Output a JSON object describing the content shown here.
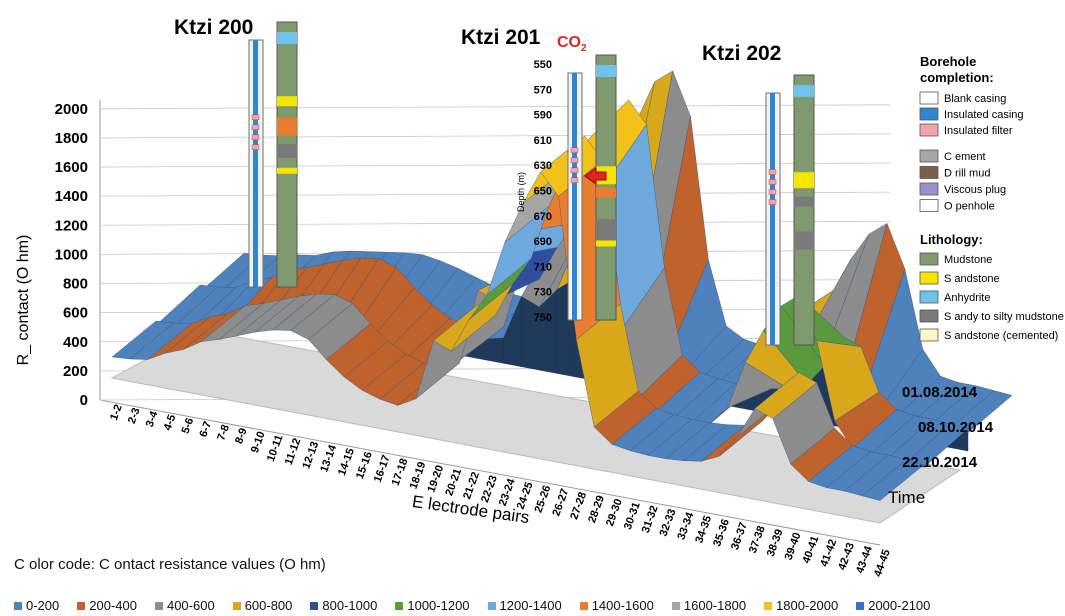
{
  "chart_data": {
    "type": "surface-3d",
    "ylabel": "R_ contact (O hm)",
    "xlabel": "E lectrode pairs",
    "zlabel": "Time",
    "yticks": [
      "0",
      "200",
      "400",
      "600",
      "800",
      "1000",
      "1200",
      "1400",
      "1600",
      "1800",
      "2000"
    ],
    "ylim": [
      0,
      2100
    ],
    "categories": [
      "1-2",
      "2-3",
      "3-4",
      "4-5",
      "5-6",
      "6-7",
      "7-8",
      "8-9",
      "9-10",
      "10-11",
      "11-12",
      "12-13",
      "13-14",
      "14-15",
      "15-16",
      "16-17",
      "17-18",
      "18-19",
      "19-20",
      "20-21",
      "21-22",
      "22-23",
      "23-24",
      "24-25",
      "25-26",
      "26-27",
      "27-28",
      "28-29",
      "29-30",
      "30-31",
      "31-32",
      "32-33",
      "33-34",
      "34-35",
      "35-36",
      "36-37",
      "37-38",
      "38-39",
      "39-40",
      "40-41",
      "41-42",
      "42-43",
      "43-44",
      "44-45"
    ],
    "time_labels": [
      "01.08.2014",
      "08.10.2014",
      "22.10.2014"
    ],
    "series": [
      {
        "name": "01.08.2014",
        "values": [
          150,
          160,
          180,
          250,
          300,
          380,
          420,
          470,
          520,
          560,
          580,
          540,
          420,
          320,
          250,
          210,
          190,
          260,
          700,
          650,
          900,
          1100,
          1500,
          1800,
          2050,
          1900,
          900,
          300,
          200,
          180,
          170,
          170,
          180,
          200,
          260,
          420,
          650,
          600,
          300,
          200,
          180,
          180,
          170,
          160
        ]
      },
      {
        "name": "08.10.2014",
        "values": [
          120,
          130,
          150,
          180,
          200,
          250,
          280,
          300,
          320,
          340,
          350,
          330,
          300,
          260,
          220,
          190,
          180,
          280,
          800,
          760,
          1100,
          1300,
          1600,
          1900,
          2000,
          1700,
          700,
          250,
          180,
          160,
          150,
          160,
          300,
          650,
          900,
          1100,
          1200,
          900,
          350,
          180,
          160,
          160,
          150,
          140
        ]
      },
      {
        "name": "22.10.2014",
        "values": [
          100,
          110,
          120,
          130,
          140,
          150,
          150,
          160,
          160,
          170,
          170,
          170,
          160,
          150,
          150,
          150,
          150,
          180,
          500,
          450,
          600,
          700,
          800,
          700,
          500,
          300,
          200,
          160,
          150,
          150,
          150,
          160,
          400,
          700,
          600,
          500,
          300,
          200,
          160,
          150,
          150,
          150,
          140,
          130
        ]
      }
    ],
    "color_code_title": "C olor code: C ontact resistance values (O hm)",
    "color_bands": [
      {
        "label": "0-200",
        "color": "#4f81bd"
      },
      {
        "label": "200-400",
        "color": "#c0622b"
      },
      {
        "label": "400-600",
        "color": "#8c8c8c"
      },
      {
        "label": "600-800",
        "color": "#d9a81a"
      },
      {
        "label": "800-1000",
        "color": "#2f4f9e"
      },
      {
        "label": "1000-1200",
        "color": "#5b9a3c"
      },
      {
        "label": "1200-1400",
        "color": "#6fa8dc"
      },
      {
        "label": "1400-1600",
        "color": "#e87d2f"
      },
      {
        "label": "1600-1800",
        "color": "#a6a6a6"
      },
      {
        "label": "1800-2000",
        "color": "#f2c21b"
      },
      {
        "label": "2000-2100",
        "color": "#3f6fc4"
      }
    ]
  },
  "wells": [
    {
      "name": "Ktzi 200"
    },
    {
      "name": "Ktzi 201",
      "marker": "CO",
      "marker_sub": "2"
    },
    {
      "name": "Ktzi 202"
    }
  ],
  "depth_axis": {
    "label": "Depth (m)",
    "ticks": [
      "550",
      "570",
      "590",
      "610",
      "630",
      "650",
      "670",
      "690",
      "710",
      "730",
      "750"
    ]
  },
  "completion_legend": {
    "title": "Borehole\ncompletion:",
    "title_line1": "Borehole",
    "title_line2": "completion:",
    "items": [
      {
        "label": "Blank casing",
        "color": "#ffffff"
      },
      {
        "label": "Insulated casing",
        "color": "#2e86d1"
      },
      {
        "label": "Insulated filter",
        "color": "#f0a3a8"
      }
    ]
  },
  "fill_legend": {
    "items": [
      {
        "label": "C ement",
        "color": "#a6a6a6"
      },
      {
        "label": "D rill mud",
        "color": "#7a6048"
      },
      {
        "label": "Viscous plug",
        "color": "#9b8fc9"
      },
      {
        "label": "O penhole",
        "color": "#ffffff"
      }
    ]
  },
  "lithology_legend": {
    "title": "Lithology:",
    "items": [
      {
        "label": "Mudstone",
        "color": "#7f9a6f"
      },
      {
        "label": "S andstone",
        "color": "#f5e600"
      },
      {
        "label": "Anhydrite",
        "color": "#6fc2ea"
      },
      {
        "label": "S andy to silty mudstone",
        "color": "#7a7a7a"
      },
      {
        "label": "S andstone (cemented)",
        "color": "#fcf6c7"
      }
    ]
  }
}
